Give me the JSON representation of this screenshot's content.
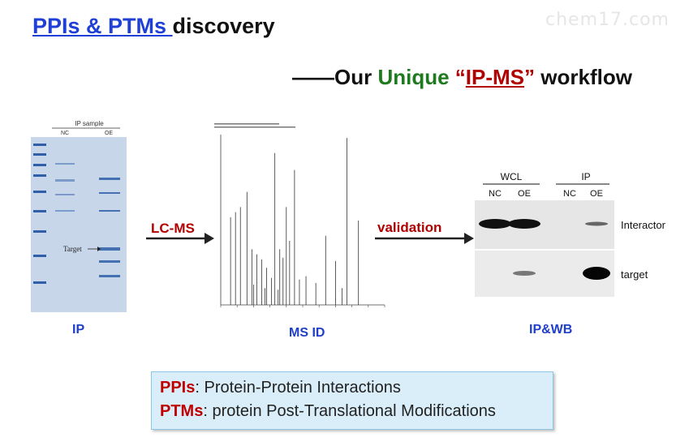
{
  "watermark": "chem17.com",
  "title": {
    "link_text": "PPIs & PTMs ",
    "rest": "discovery"
  },
  "subtitle": {
    "dash": "——",
    "our": "Our ",
    "unique": "Unique",
    "open_quote": " “",
    "ipms": "IP-MS",
    "close_quote": "”",
    "workflow": " workflow"
  },
  "gel": {
    "header": "IP sample",
    "lanes": [
      "NC",
      "OE"
    ],
    "target_label": "Target"
  },
  "captions": {
    "ip": "IP",
    "ms": "MS ID",
    "wb": "IP&WB"
  },
  "arrows": {
    "lcms": "LC-MS",
    "validation": "validation"
  },
  "wb": {
    "groups": [
      "WCL",
      "IP"
    ],
    "lanes": [
      "NC",
      "OE",
      "NC",
      "OE"
    ],
    "rows": [
      "Interactor",
      "target"
    ]
  },
  "definitions": [
    {
      "abbr": "PPIs",
      "text": ": Protein-Protein Interactions"
    },
    {
      "abbr": "PTMs",
      "text": ": protein Post-Translational Modifications"
    }
  ],
  "colors": {
    "title_blue": "#1f3fd6",
    "accent_red": "#b00000",
    "unique_green": "#1f7a1f",
    "caption_blue": "#1f3fc8",
    "gel_blue": "#2f5fa8"
  }
}
